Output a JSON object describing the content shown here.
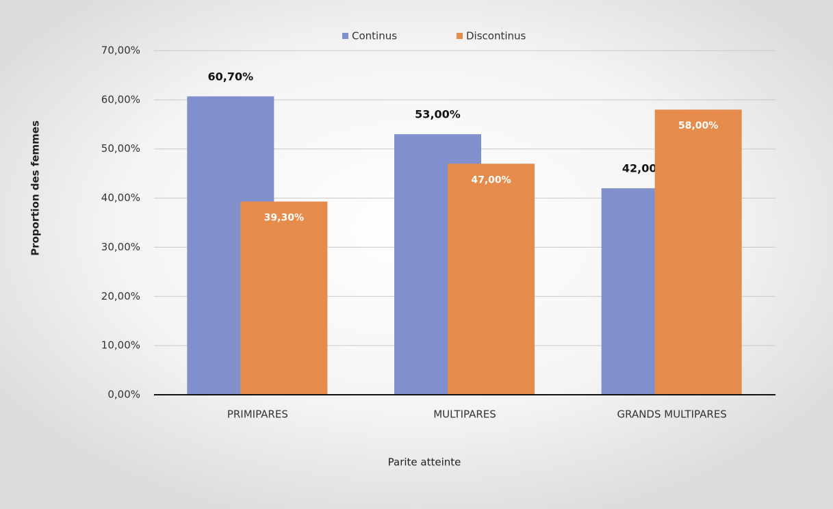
{
  "chart_data": {
    "type": "bar",
    "categories": [
      "PRIMIPARES",
      "MULTIPARES",
      "GRANDS MULTIPARES"
    ],
    "series": [
      {
        "name": "Continus",
        "color": "#7f90cc",
        "values": [
          60.7,
          53,
          42
        ],
        "value_labels": [
          "60,70%",
          "53,00%",
          "42,00%"
        ]
      },
      {
        "name": "Discontinus",
        "color": "#e58c4c",
        "values": [
          39.3,
          47,
          58
        ],
        "value_labels": [
          "39,30%",
          "47,00%",
          "58,00%"
        ]
      }
    ],
    "xlabel": "Parite atteinte",
    "ylabel": "Proportion des femmes",
    "ylim": [
      0,
      70
    ],
    "yticks": [
      {
        "value": 0,
        "label": "0,00%"
      },
      {
        "value": 10,
        "label": "10,00%"
      },
      {
        "value": 20,
        "label": "20,00%"
      },
      {
        "value": 30,
        "label": "30,00%"
      },
      {
        "value": 40,
        "label": "40,00%"
      },
      {
        "value": 50,
        "label": "50,00%"
      },
      {
        "value": 60,
        "label": "60,00%"
      },
      {
        "value": 70,
        "label": "70,00%"
      }
    ],
    "grid": true,
    "legend": "top"
  }
}
